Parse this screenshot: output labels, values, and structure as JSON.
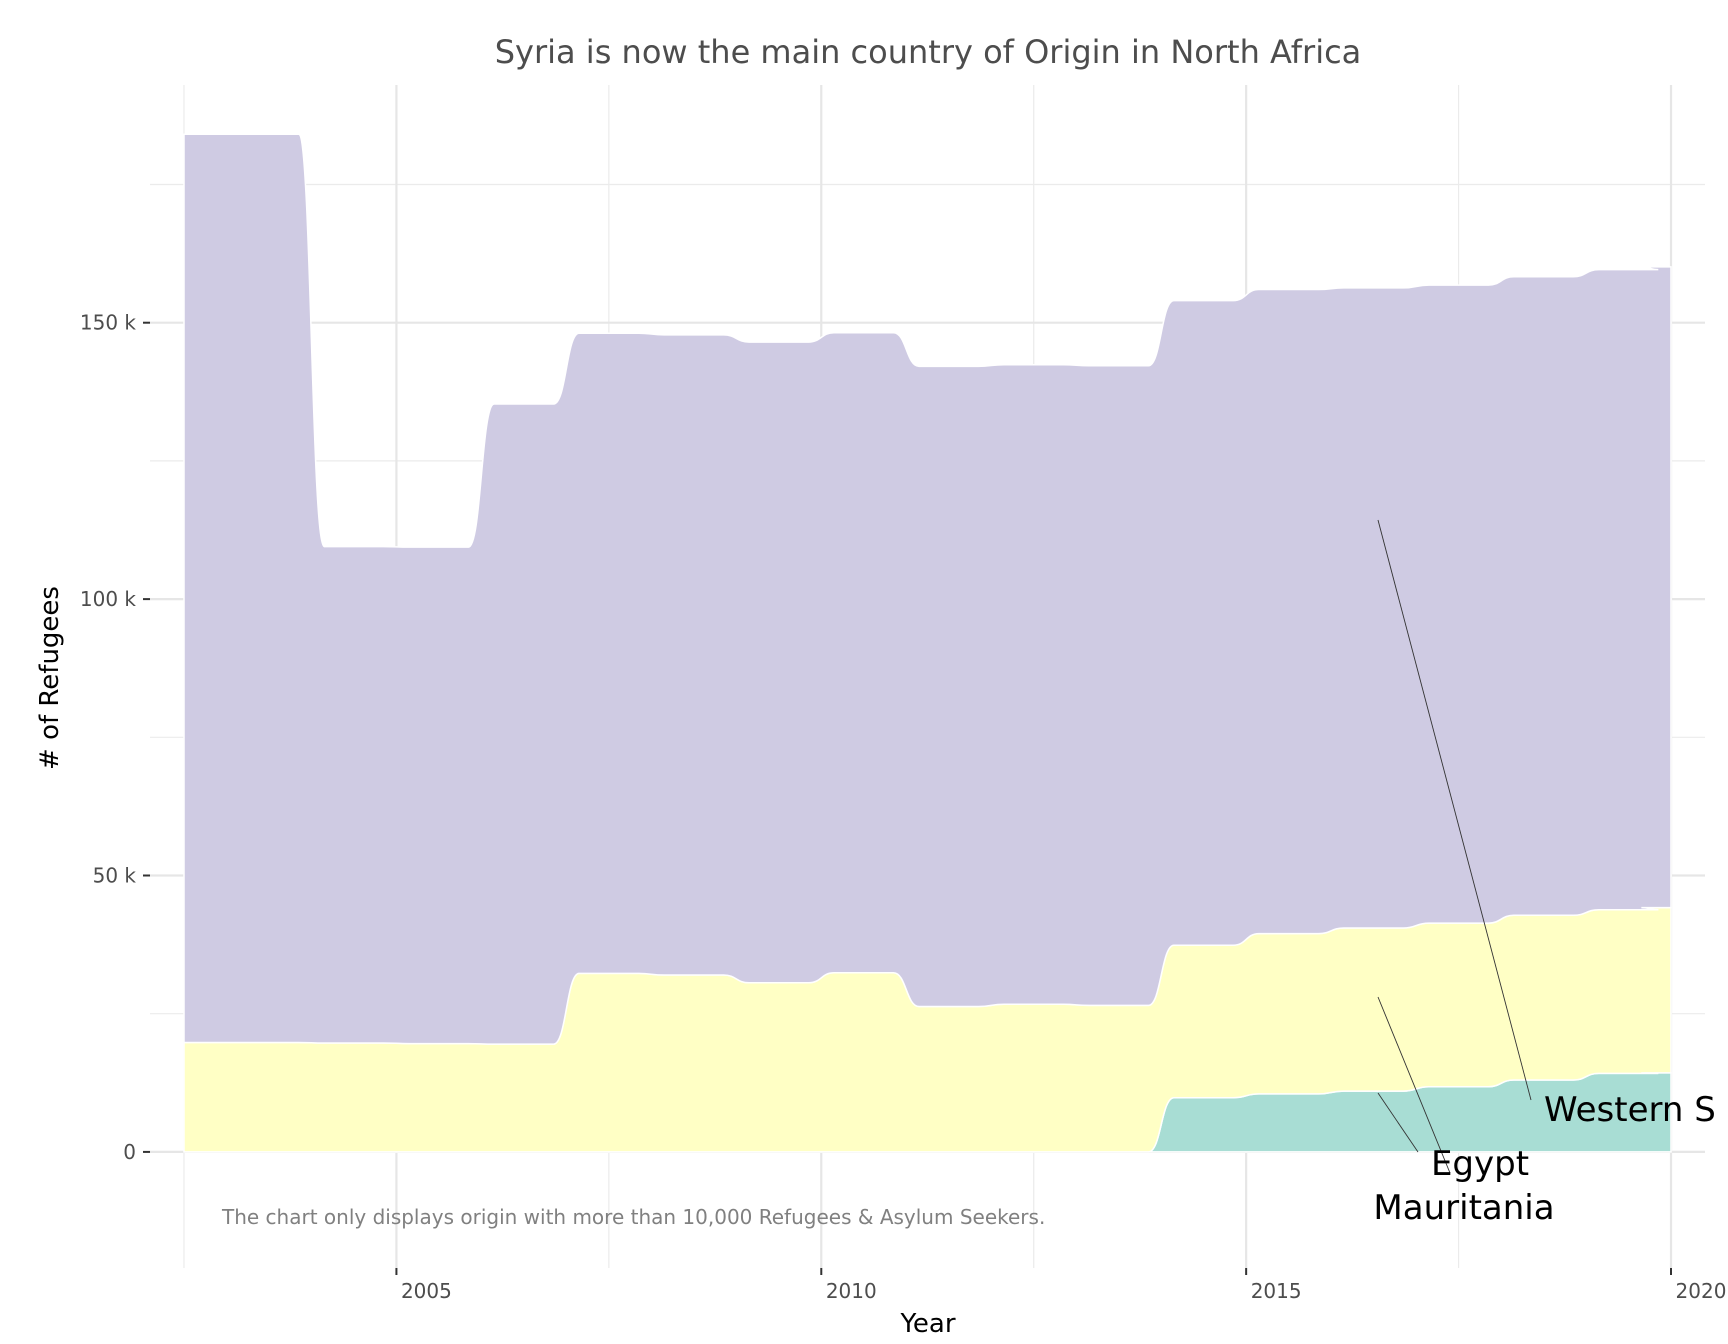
{
  "chart_data": {
    "type": "area",
    "title": "Syria is now the main country of Origin in North Africa",
    "xlabel": "Year",
    "ylabel": "# of Refugees",
    "caption": "The chart only displays origin with more than 10,000 Refugees & Asylum Seekers.",
    "stacked": true,
    "grid": true,
    "legend": "none",
    "xlim": [
      2002.1,
      2020.4
    ],
    "ylim": [
      -21000,
      193000
    ],
    "x_ticks": [
      2005,
      2010,
      2015,
      2020
    ],
    "x_tick_labels": [
      "2005",
      "2010",
      "2015",
      "2020"
    ],
    "y_ticks": [
      0,
      50000,
      100000,
      150000
    ],
    "y_tick_labels": [
      "0",
      "50 k",
      "100 k",
      "150 k"
    ],
    "x": [
      2002.5,
      2003.5,
      2004.5,
      2005.5,
      2006.5,
      2007.5,
      2008.5,
      2009.5,
      2010.5,
      2011.5,
      2012.5,
      2013.5,
      2014.5,
      2015.5,
      2016.5,
      2017.5,
      2018.5,
      2019.5,
      2020.0
    ],
    "series": [
      {
        "name": "Mauritania",
        "color": "#a8ddd4",
        "values": [
          0,
          0,
          0,
          0,
          0,
          0,
          0,
          0,
          0,
          0,
          0,
          0,
          9800,
          10500,
          11000,
          11800,
          13000,
          14200,
          14300
        ]
      },
      {
        "name": "Egypt",
        "color": "#ffffc5",
        "values": [
          19800,
          19800,
          19700,
          19600,
          19500,
          32300,
          32000,
          30600,
          32400,
          26300,
          26700,
          26500,
          27600,
          29000,
          29500,
          29600,
          29800,
          29600,
          29900
        ]
      },
      {
        "name": "Western S",
        "color": "#cfcbe3",
        "values": [
          164300,
          164300,
          89800,
          89800,
          115800,
          115800,
          115800,
          115900,
          115800,
          115800,
          115700,
          115700,
          116600,
          116500,
          115800,
          115400,
          115500,
          115800,
          115900
        ]
      }
    ],
    "annotations": [
      {
        "text": "Western S",
        "series": "Western S"
      },
      {
        "text": "Egypt",
        "series": "Egypt"
      },
      {
        "text": "Mauritania",
        "series": "Mauritania"
      }
    ]
  }
}
